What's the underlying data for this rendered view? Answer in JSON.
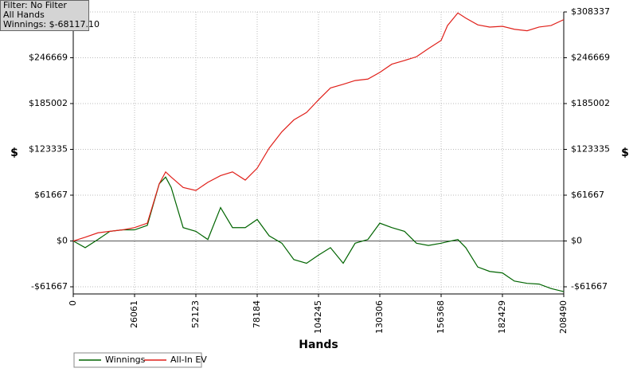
{
  "chart_data": {
    "type": "line",
    "annotations": [
      "Filter: No Filter",
      "All Hands",
      "Winnings: $-68117.10"
    ],
    "xlabel": "Hands",
    "ylabel": "$",
    "x": [
      0,
      5078,
      10494,
      15571,
      20987,
      26061,
      31480,
      36556,
      39264,
      41633,
      46711,
      52123,
      57203,
      62619,
      67696,
      73112,
      78184,
      83266,
      88679,
      93757,
      99173,
      104245,
      109329,
      114740,
      119819,
      125235,
      130306,
      135390,
      140808,
      145880,
      150960,
      156368,
      159078,
      163478,
      166862,
      171940,
      177017,
      182429,
      187512,
      192927,
      198004,
      203083,
      208490
    ],
    "series": [
      {
        "name": "Winnings",
        "color": "#006400",
        "values": [
          0,
          -9000,
          2000,
          13000,
          15000,
          15000,
          21000,
          77000,
          86000,
          72000,
          18000,
          13000,
          2000,
          45000,
          18000,
          18000,
          29000,
          7000,
          -3000,
          -25000,
          -30000,
          -19000,
          -9000,
          -30000,
          -3000,
          2000,
          24000,
          18000,
          13000,
          -3000,
          -6000,
          -3000,
          -1000,
          2000,
          -9000,
          -35000,
          -41000,
          -43000,
          -54000,
          -57000,
          -58000,
          -64000,
          -68117
        ]
      },
      {
        "name": "All-In EV",
        "color": "#e0201a",
        "values": [
          0,
          5000,
          11000,
          13000,
          15000,
          18000,
          24000,
          77000,
          93000,
          86000,
          72000,
          68000,
          79000,
          88000,
          93000,
          82000,
          98000,
          125000,
          147000,
          163000,
          173000,
          190000,
          206000,
          211000,
          216000,
          218000,
          227000,
          238000,
          243000,
          248000,
          259000,
          270000,
          290000,
          307000,
          300000,
          291000,
          288000,
          289000,
          285000,
          283000,
          288000,
          290000,
          298000
        ]
      }
    ],
    "xlim": [
      0,
      208490
    ],
    "xticks": [
      0,
      26061,
      52123,
      78184,
      104245,
      130306,
      156368,
      182429,
      208490
    ],
    "ylim": [
      -71300,
      308337
    ],
    "yticks": [
      {
        "value": 308337,
        "label": "$308337"
      },
      {
        "value": 246669,
        "label": "$246669"
      },
      {
        "value": 185002,
        "label": "$185002"
      },
      {
        "value": 123335,
        "label": "$123335"
      },
      {
        "value": 61667,
        "label": "$61667"
      },
      {
        "value": 0,
        "label": "$0"
      },
      {
        "value": -61667,
        "label": "-$61667"
      }
    ],
    "grid": true
  }
}
